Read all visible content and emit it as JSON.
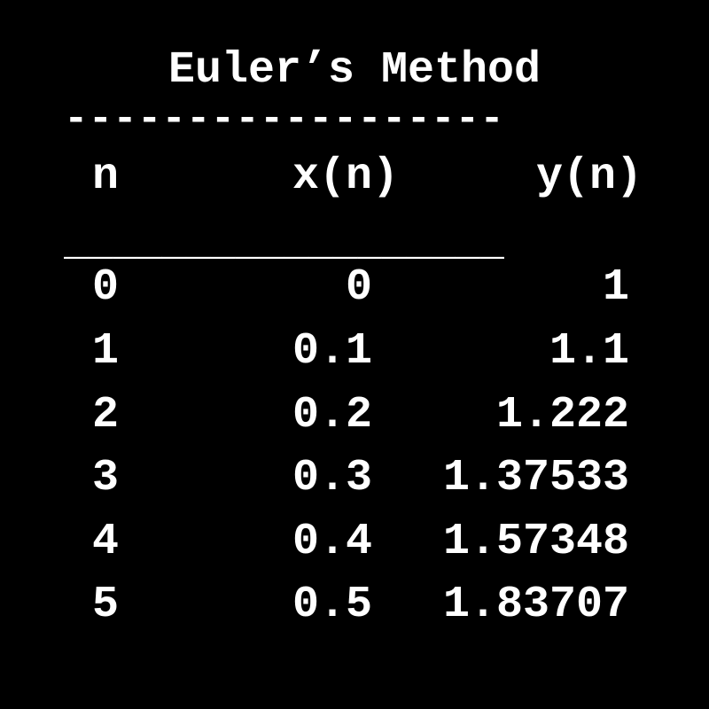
{
  "title": "Euler’s Method",
  "rule_top": "------------------",
  "rule_mid": "__________________",
  "headers": {
    "n": "n",
    "x": "x(n)",
    "y": "y(n)"
  },
  "rows": [
    {
      "n": "0",
      "x": "0",
      "y": "1"
    },
    {
      "n": "1",
      "x": "0.1",
      "y": "1.1"
    },
    {
      "n": "2",
      "x": "0.2",
      "y": "1.222"
    },
    {
      "n": "3",
      "x": "0.3",
      "y": "1.37533"
    },
    {
      "n": "4",
      "x": "0.4",
      "y": "1.57348"
    },
    {
      "n": "5",
      "x": "0.5",
      "y": "1.83707"
    }
  ]
}
